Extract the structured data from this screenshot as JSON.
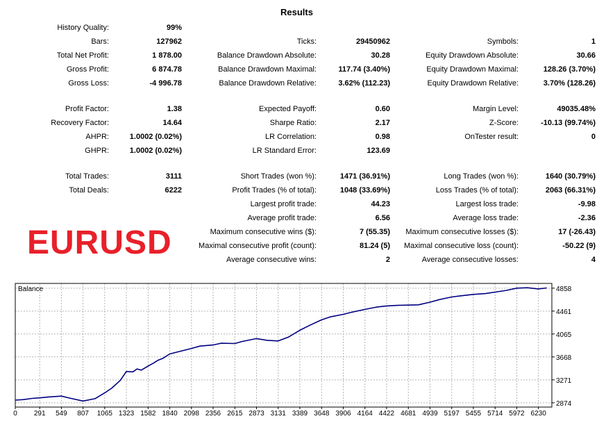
{
  "title": "Results",
  "watermark": "EURUSD",
  "columns": [
    [
      {
        "label": "History Quality:",
        "value": "99%"
      },
      {
        "label": "Bars:",
        "value": "127962"
      },
      {
        "label": "Total Net Profit:",
        "value": "1 878.00"
      },
      {
        "label": "Gross Profit:",
        "value": "6 874.78"
      },
      {
        "label": "Gross Loss:",
        "value": "-4 996.78"
      },
      {
        "label": "Profit Factor:",
        "value": "1.38"
      },
      {
        "label": "Recovery Factor:",
        "value": "14.64"
      },
      {
        "label": "AHPR:",
        "value": "1.0002 (0.02%)"
      },
      {
        "label": "GHPR:",
        "value": "1.0002 (0.02%)"
      },
      {
        "label": "Total Trades:",
        "value": "3111"
      },
      {
        "label": "Total Deals:",
        "value": "6222"
      }
    ],
    [
      {
        "label": "Ticks:",
        "value": "29450962"
      },
      {
        "label": "Balance Drawdown Absolute:",
        "value": "30.28"
      },
      {
        "label": "Balance Drawdown Maximal:",
        "value": "117.74 (3.40%)"
      },
      {
        "label": "Balance Drawdown Relative:",
        "value": "3.62% (112.23)"
      },
      {
        "label": "Expected Payoff:",
        "value": "0.60"
      },
      {
        "label": "Sharpe Ratio:",
        "value": "2.17"
      },
      {
        "label": "LR Correlation:",
        "value": "0.98"
      },
      {
        "label": "LR Standard Error:",
        "value": "123.69"
      },
      {
        "label": "Short Trades (won %):",
        "value": "1471 (36.91%)"
      },
      {
        "label": "Profit Trades (% of total):",
        "value": "1048 (33.69%)"
      },
      {
        "label": "Largest profit trade:",
        "value": "44.23"
      },
      {
        "label": "Average profit trade:",
        "value": "6.56"
      },
      {
        "label": "Maximum consecutive wins ($):",
        "value": "7 (55.35)"
      },
      {
        "label": "Maximal consecutive profit (count):",
        "value": "81.24 (5)"
      },
      {
        "label": "Average consecutive wins:",
        "value": "2"
      }
    ],
    [
      {
        "label": "Symbols:",
        "value": "1"
      },
      {
        "label": "Equity Drawdown Absolute:",
        "value": "30.66"
      },
      {
        "label": "Equity Drawdown Maximal:",
        "value": "128.26 (3.70%)"
      },
      {
        "label": "Equity Drawdown Relative:",
        "value": "3.70% (128.26)"
      },
      {
        "label": "Margin Level:",
        "value": "49035.48%"
      },
      {
        "label": "Z-Score:",
        "value": "-10.13 (99.74%)"
      },
      {
        "label": "OnTester result:",
        "value": "0"
      },
      {
        "label": "Long Trades (won %):",
        "value": "1640 (30.79%)"
      },
      {
        "label": "Loss Trades (% of total):",
        "value": "2063 (66.31%)"
      },
      {
        "label": "Largest loss trade:",
        "value": "-9.98"
      },
      {
        "label": "Average loss trade:",
        "value": "-2.36"
      },
      {
        "label": "Maximum consecutive losses ($):",
        "value": "17 (-26.43)"
      },
      {
        "label": "Maximal consecutive loss (count):",
        "value": "-50.22 (9)"
      },
      {
        "label": "Average consecutive losses:",
        "value": "4"
      }
    ]
  ],
  "chart_data": {
    "type": "line",
    "title": "Balance",
    "xlabel": "",
    "ylabel": "",
    "x_ticks": [
      0,
      291,
      549,
      807,
      1065,
      1323,
      1582,
      1840,
      2098,
      2356,
      2615,
      2873,
      3131,
      3389,
      3648,
      3906,
      4164,
      4422,
      4681,
      4939,
      5197,
      5455,
      5714,
      5972,
      6230
    ],
    "y_ticks": [
      2874,
      3271,
      3668,
      4065,
      4461,
      4858
    ],
    "xlim": [
      0,
      6390
    ],
    "ylim": [
      2800,
      4940
    ],
    "grid": true,
    "line_color": "#000080",
    "series": [
      {
        "x": [
          0,
          100,
          200,
          291,
          400,
          549,
          650,
          807,
          950,
          1065,
          1150,
          1250,
          1323,
          1400,
          1450,
          1500,
          1582,
          1650,
          1700,
          1760,
          1840,
          1950,
          2098,
          2200,
          2356,
          2450,
          2615,
          2700,
          2873,
          3000,
          3131,
          3250,
          3389,
          3500,
          3648,
          3750,
          3906,
          4000,
          4164,
          4300,
          4422,
          4550,
          4681,
          4800,
          4939,
          5050,
          5197,
          5300,
          5455,
          5600,
          5714,
          5850,
          5972,
          6100,
          6230,
          6330
        ],
        "y": [
          2920,
          2930,
          2950,
          2960,
          2975,
          2990,
          2955,
          2905,
          2945,
          3045,
          3130,
          3260,
          3415,
          3410,
          3460,
          3440,
          3510,
          3565,
          3610,
          3645,
          3720,
          3760,
          3815,
          3855,
          3875,
          3905,
          3900,
          3935,
          3985,
          3955,
          3945,
          4010,
          4130,
          4210,
          4310,
          4360,
          4405,
          4440,
          4490,
          4530,
          4550,
          4560,
          4565,
          4570,
          4615,
          4660,
          4705,
          4725,
          4750,
          4765,
          4790,
          4820,
          4858,
          4865,
          4845,
          4862
        ]
      }
    ]
  }
}
